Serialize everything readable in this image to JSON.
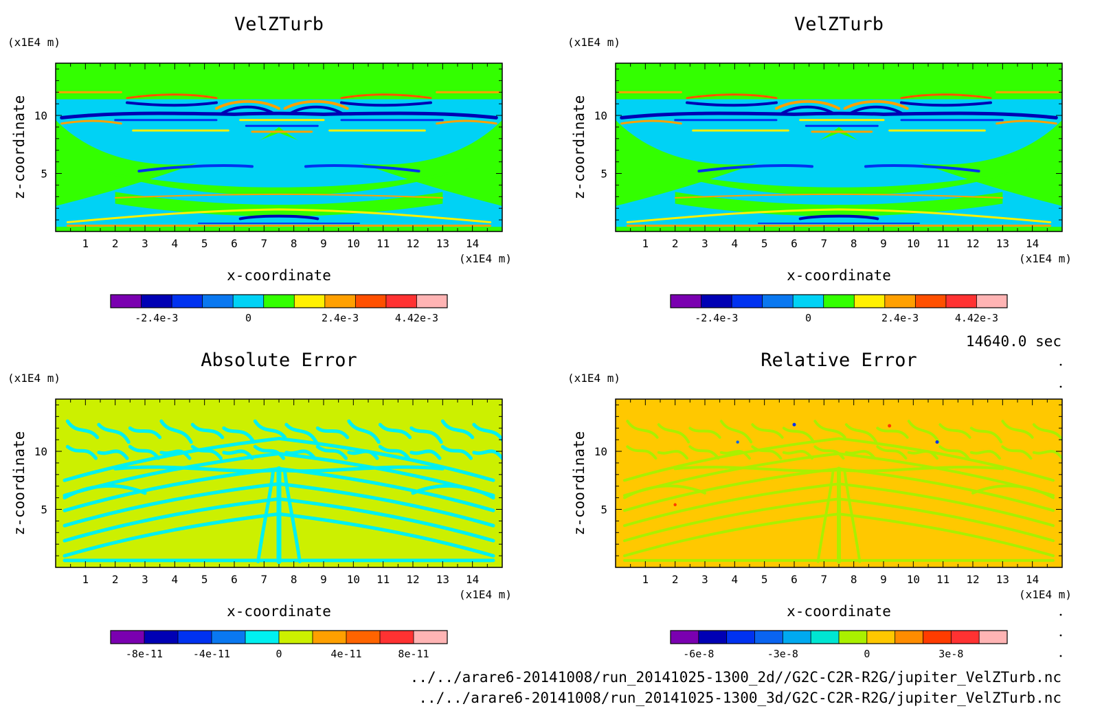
{
  "time_label": "14640.0 sec",
  "files": [
    "../../arare6-20141008/run_20141025-1300_2d//G2C-C2R-R2G/jupiter_VelZTurb.nc",
    "../../arare6-20141008/run_20141025-1300_3d/G2C-C2R-R2G/jupiter_VelZTurb.nc"
  ],
  "chart_data": [
    {
      "type": "heatmap",
      "title": "VelZTurb",
      "xlabel": "x-coordinate",
      "ylabel": "z-coordinate",
      "x_unit": "(x1E4 m)",
      "y_unit": "(x1E4 m)",
      "xlim": [
        0,
        15
      ],
      "ylim": [
        0,
        14.5
      ],
      "xticks": [
        "1",
        "2",
        "3",
        "4",
        "5",
        "6",
        "7",
        "8",
        "9",
        "10",
        "11",
        "12",
        "13",
        "14"
      ],
      "yticks": [
        "5",
        "10"
      ],
      "background_color": "#33ff00",
      "colorbar": {
        "colors": [
          "#7a00b0",
          "#0000b4",
          "#0032f0",
          "#0a78f0",
          "#00d2f5",
          "#33ff00",
          "#fff000",
          "#ffa000",
          "#ff5000",
          "#ff3232",
          "#ffb4b4"
        ],
        "labels": [
          "-2.4e-3",
          "0",
          "2.4e-3",
          "4.42e-3"
        ],
        "label_positions": [
          1.5,
          4.5,
          7.5,
          10
        ]
      }
    },
    {
      "type": "heatmap",
      "title": "VelZTurb",
      "xlabel": "x-coordinate",
      "ylabel": "z-coordinate",
      "x_unit": "(x1E4 m)",
      "y_unit": "(x1E4 m)",
      "xlim": [
        0,
        15
      ],
      "ylim": [
        0,
        14.5
      ],
      "xticks": [
        "1",
        "2",
        "3",
        "4",
        "5",
        "6",
        "7",
        "8",
        "9",
        "10",
        "11",
        "12",
        "13",
        "14"
      ],
      "yticks": [
        "5",
        "10"
      ],
      "background_color": "#33ff00",
      "colorbar": {
        "colors": [
          "#7a00b0",
          "#0000b4",
          "#0032f0",
          "#0a78f0",
          "#00d2f5",
          "#33ff00",
          "#fff000",
          "#ffa000",
          "#ff5000",
          "#ff3232",
          "#ffb4b4"
        ],
        "labels": [
          "-2.4e-3",
          "0",
          "2.4e-3",
          "4.42e-3"
        ],
        "label_positions": [
          1.5,
          4.5,
          7.5,
          10
        ]
      }
    },
    {
      "type": "heatmap",
      "title": "Absolute Error",
      "xlabel": "x-coordinate",
      "ylabel": "z-coordinate",
      "x_unit": "(x1E4 m)",
      "y_unit": "(x1E4 m)",
      "xlim": [
        0,
        15
      ],
      "ylim": [
        0,
        14.5
      ],
      "xticks": [
        "1",
        "2",
        "3",
        "4",
        "5",
        "6",
        "7",
        "8",
        "9",
        "10",
        "11",
        "12",
        "13",
        "14"
      ],
      "yticks": [
        "5",
        "10"
      ],
      "background_color": "#ccf000",
      "colorbar": {
        "colors": [
          "#7a00b0",
          "#0000b4",
          "#0032f0",
          "#0a78f0",
          "#00f0f0",
          "#ccf000",
          "#ffa000",
          "#ff6400",
          "#ff3232",
          "#ffb4b4"
        ],
        "labels": [
          "-8e-11",
          "-4e-11",
          "0",
          "4e-11",
          "8e-11"
        ],
        "label_positions": [
          1,
          3,
          5,
          7,
          9
        ]
      }
    },
    {
      "type": "heatmap",
      "title": "Relative Error",
      "xlabel": "x-coordinate",
      "ylabel": "z-coordinate",
      "x_unit": "(x1E4 m)",
      "y_unit": "(x1E4 m)",
      "xlim": [
        0,
        15
      ],
      "ylim": [
        0,
        14.5
      ],
      "xticks": [
        "1",
        "2",
        "3",
        "4",
        "5",
        "6",
        "7",
        "8",
        "9",
        "10",
        "11",
        "12",
        "13",
        "14"
      ],
      "yticks": [
        "5",
        "10"
      ],
      "background_color": "#ffc800",
      "colorbar": {
        "colors": [
          "#7a00b0",
          "#0000b4",
          "#0032f0",
          "#0a64f0",
          "#00aaf0",
          "#00e6d2",
          "#aaf000",
          "#ffc800",
          "#ff8c00",
          "#ff3c00",
          "#ff3232",
          "#ffb4b4"
        ],
        "labels": [
          "-6e-8",
          "-3e-8",
          "0",
          "3e-8"
        ],
        "label_positions": [
          1,
          4,
          7,
          10
        ]
      }
    }
  ]
}
